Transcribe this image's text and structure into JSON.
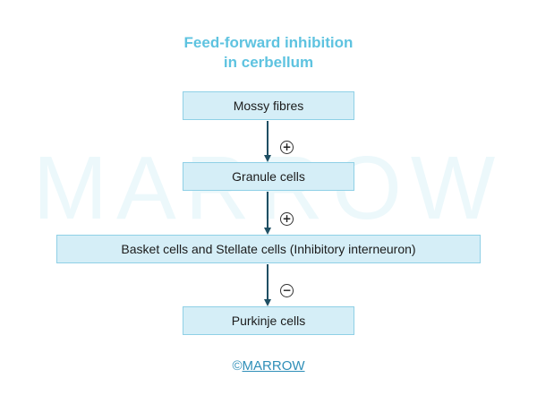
{
  "title": {
    "line1": "Feed-forward inhibition",
    "line2": "in cerbellum"
  },
  "watermark": "MARROW",
  "boxes": {
    "mossy": "Mossy fibres",
    "granule": "Granule cells",
    "basket": "Basket cells and Stellate cells (Inhibitory interneuron)",
    "purkinje": "Purkinje cells"
  },
  "signs": {
    "s1": "+",
    "s2": "+",
    "s3": "−"
  },
  "footer": {
    "copyright": "©",
    "brand": "MARROW"
  },
  "colors": {
    "title": "#5ec3e0",
    "box_fill": "#d5eef7",
    "box_border": "#8fd0e6",
    "arrow": "#1f4f63",
    "footer": "#2f8fb8",
    "watermark": "#ecf8fb"
  }
}
